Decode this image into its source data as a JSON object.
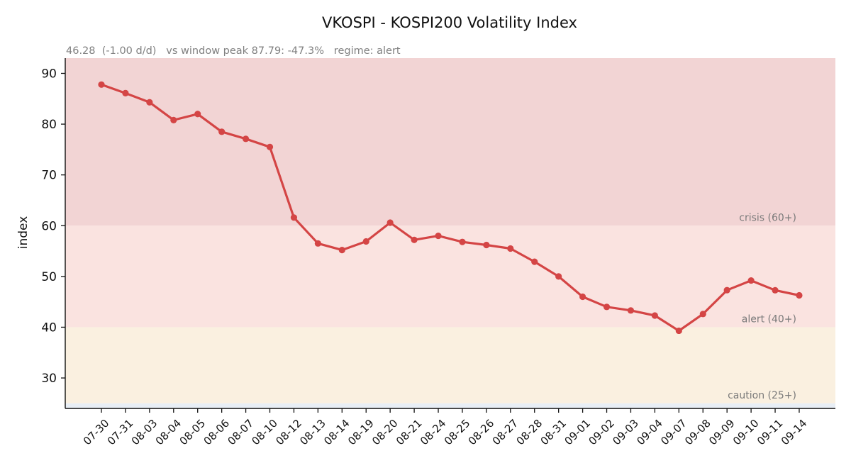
{
  "chart_data": {
    "type": "line",
    "title": "VKOSPI - KOSPI200 Volatility Index",
    "subtitle": "46.28  (-1.00 d/d)   vs window peak 87.79: -47.3%   regime: alert",
    "xlabel": "",
    "ylabel": "index",
    "ylim": [
      24,
      93
    ],
    "yticks": [
      30,
      40,
      50,
      60,
      70,
      80,
      90
    ],
    "grid": false,
    "colors": {
      "line": "#d44545",
      "crisis": "#f2d4d4",
      "alert": "#fae3e0",
      "caution": "#faf0e0",
      "calm": "#e8eef5"
    },
    "bands": [
      {
        "label": "crisis (60+)",
        "from": 60,
        "to": 93,
        "color": "#f2d4d4"
      },
      {
        "label": "alert (40+)",
        "from": 40,
        "to": 60,
        "color": "#fae3e0"
      },
      {
        "label": "caution (25+)",
        "from": 25,
        "to": 40,
        "color": "#faf0e0"
      },
      {
        "label": "",
        "from": 24,
        "to": 25,
        "color": "#e8eef5"
      }
    ],
    "categories": [
      "07-30",
      "07-31",
      "08-03",
      "08-04",
      "08-05",
      "08-06",
      "08-07",
      "08-10",
      "08-12",
      "08-13",
      "08-14",
      "08-19",
      "08-20",
      "08-21",
      "08-24",
      "08-25",
      "08-26",
      "08-27",
      "08-28",
      "08-31",
      "09-01",
      "09-02",
      "09-03",
      "09-04",
      "09-07",
      "09-08",
      "09-09",
      "09-10",
      "09-11",
      "09-14"
    ],
    "series": [
      {
        "values": [
          87.79,
          86.1,
          84.3,
          80.8,
          82.0,
          78.5,
          77.1,
          75.5,
          61.6,
          56.5,
          55.2,
          56.9,
          60.6,
          57.2,
          58.0,
          56.8,
          56.2,
          55.5,
          52.9,
          50.0,
          46.0,
          44.0,
          43.3,
          42.3,
          39.3,
          42.6,
          47.3,
          49.2,
          47.28,
          46.28
        ]
      }
    ]
  }
}
